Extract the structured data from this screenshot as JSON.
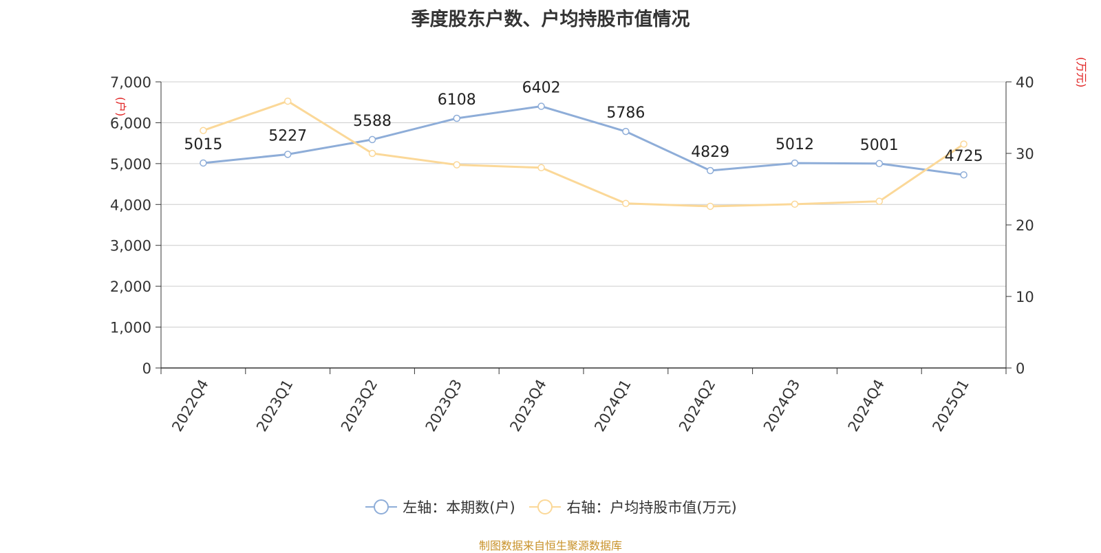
{
  "chart_data": {
    "type": "line",
    "title": "季度股东户数、户均持股市值情况",
    "categories": [
      "2022Q4",
      "2023Q1",
      "2023Q2",
      "2023Q3",
      "2023Q4",
      "2024Q1",
      "2024Q2",
      "2024Q3",
      "2024Q4",
      "2025Q1"
    ],
    "y_left": {
      "unit_label": "(户)",
      "range": [
        0,
        7000
      ],
      "ticks": [
        0,
        1000,
        2000,
        3000,
        4000,
        5000,
        6000,
        7000
      ],
      "tick_labels": [
        "0",
        "1,000",
        "2,000",
        "3,000",
        "4,000",
        "5,000",
        "6,000",
        "7,000"
      ]
    },
    "y_right": {
      "unit_label": "(万元)",
      "range": [
        0,
        40
      ],
      "ticks": [
        0,
        10,
        20,
        30,
        40
      ],
      "tick_labels": [
        "0",
        "10",
        "20",
        "30",
        "40"
      ]
    },
    "series": [
      {
        "name": "左轴：本期数(户)",
        "axis": "left",
        "color": "#8eadd8",
        "values": [
          5015,
          5227,
          5588,
          6108,
          6402,
          5786,
          4829,
          5012,
          5001,
          4725
        ],
        "data_labels": [
          "5015",
          "5227",
          "5588",
          "6108",
          "6402",
          "5786",
          "4829",
          "5012",
          "5001",
          "4725"
        ]
      },
      {
        "name": "右轴：户均持股市值(万元)",
        "axis": "right",
        "color": "#fbd898",
        "values": [
          33.2,
          37.3,
          30.0,
          28.4,
          28.0,
          23.0,
          22.6,
          22.9,
          23.3,
          31.3
        ]
      }
    ],
    "grid": true,
    "legend_position": "bottom"
  },
  "footer": {
    "source": "制图数据来自恒生聚源数据库"
  }
}
